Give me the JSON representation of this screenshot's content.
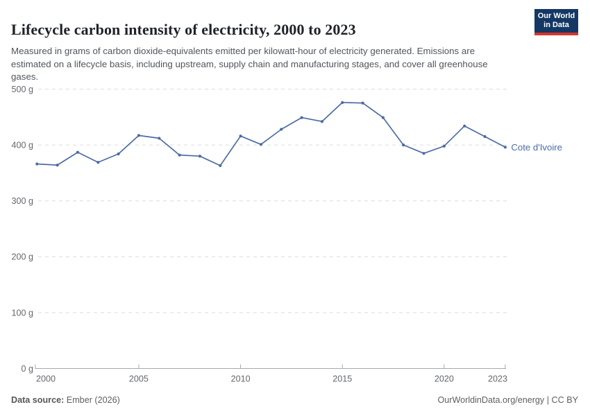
{
  "header": {
    "title": "Lifecycle carbon intensity of electricity, 2000 to 2023",
    "logo": {
      "line1": "Our World",
      "line2": "in Data",
      "bg_color": "#143863",
      "underline_color": "#d8352a"
    }
  },
  "subtitle": "Measured in grams of carbon dioxide-equivalents emitted per kilowatt-hour of electricity generated. Emissions are estimated on a lifecycle basis, including upstream, supply chain and manufacturing stages, and cover all greenhouse gases.",
  "chart_data": {
    "type": "line",
    "title": "Lifecycle carbon intensity of electricity, 2000 to 2023",
    "x": [
      2000,
      2001,
      2002,
      2003,
      2004,
      2005,
      2006,
      2007,
      2008,
      2009,
      2010,
      2011,
      2012,
      2013,
      2014,
      2015,
      2016,
      2017,
      2018,
      2019,
      2020,
      2021,
      2022,
      2023
    ],
    "series": [
      {
        "name": "Cote d'Ivoire",
        "color": "#4c6ba5",
        "values": [
          366,
          364,
          387,
          369,
          384,
          417,
          412,
          382,
          380,
          363,
          416,
          401,
          428,
          449,
          442,
          476,
          475,
          449,
          400,
          385,
          398,
          434,
          415,
          396
        ]
      }
    ],
    "ylim": [
      0,
      500
    ],
    "xlim": [
      2000,
      2023
    ],
    "yticks": [
      0,
      100,
      200,
      300,
      400,
      500
    ],
    "ytick_suffix": " g",
    "xticks": [
      2000,
      2005,
      2010,
      2015,
      2020,
      2023
    ],
    "grid": "horizontal-dashed",
    "legend_position": "line-end-label",
    "grid_color": "#dcdcdc",
    "axis_color": "#a8a8a8",
    "tick_label_color": "#63676d"
  },
  "footer": {
    "source_label": "Data source:",
    "source_value": " Ember (2026)",
    "attribution": "OurWorldinData.org/energy | CC BY"
  }
}
